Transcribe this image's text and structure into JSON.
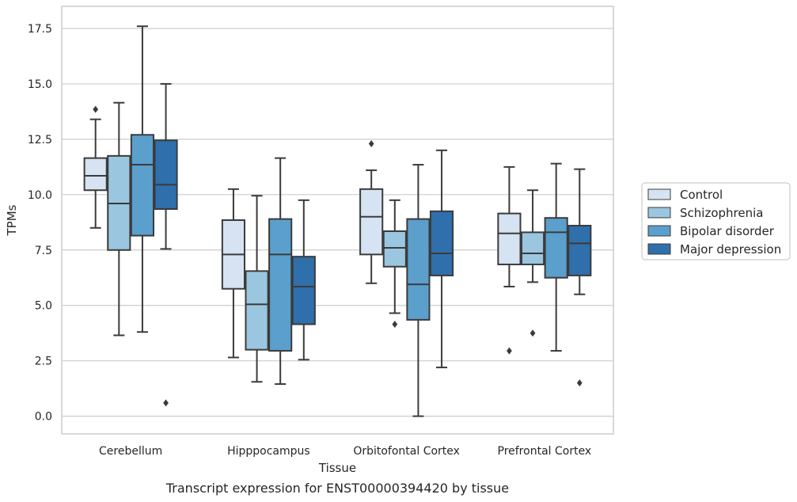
{
  "chart_data": {
    "type": "box",
    "caption": "Transcript expression for ENST00000394420 by tissue",
    "xlabel": "Tissue",
    "ylabel": "TPMs",
    "ylim": [
      -0.8,
      18.5
    ],
    "yticks": [
      "0.0",
      "2.5",
      "5.0",
      "7.5",
      "10.0",
      "12.5",
      "15.0",
      "17.5"
    ],
    "grid": true,
    "legend_position": "right",
    "categories": [
      "Cerebellum",
      "Hipppocampus",
      "Orbitofontal Cortex",
      "Prefrontal Cortex"
    ],
    "series": [
      {
        "name": "Control",
        "color": "#d5e3f2",
        "boxes": [
          {
            "whislo": 8.5,
            "q1": 10.2,
            "med": 10.85,
            "q3": 11.65,
            "whishi": 13.4,
            "fliers": [
              13.85
            ]
          },
          {
            "whislo": 2.65,
            "q1": 5.75,
            "med": 7.3,
            "q3": 8.85,
            "whishi": 10.25,
            "fliers": []
          },
          {
            "whislo": 6.0,
            "q1": 7.3,
            "med": 9.0,
            "q3": 10.25,
            "whishi": 11.1,
            "fliers": [
              12.3
            ]
          },
          {
            "whislo": 5.85,
            "q1": 6.85,
            "med": 8.25,
            "q3": 9.15,
            "whishi": 11.25,
            "fliers": [
              2.95
            ]
          }
        ]
      },
      {
        "name": "Schizophrenia",
        "color": "#9ac6e0",
        "boxes": [
          {
            "whislo": 3.65,
            "q1": 7.5,
            "med": 9.6,
            "q3": 11.75,
            "whishi": 14.15,
            "fliers": []
          },
          {
            "whislo": 1.55,
            "q1": 3.0,
            "med": 5.05,
            "q3": 6.55,
            "whishi": 9.95,
            "fliers": []
          },
          {
            "whislo": 4.65,
            "q1": 6.75,
            "med": 7.6,
            "q3": 8.35,
            "whishi": 9.75,
            "fliers": [
              4.15
            ]
          },
          {
            "whislo": 6.05,
            "q1": 6.85,
            "med": 7.35,
            "q3": 8.3,
            "whishi": 10.2,
            "fliers": [
              3.75
            ]
          }
        ]
      },
      {
        "name": "Bipolar disorder",
        "color": "#5b9fcc",
        "boxes": [
          {
            "whislo": 3.8,
            "q1": 8.15,
            "med": 11.35,
            "q3": 12.7,
            "whishi": 17.6,
            "fliers": []
          },
          {
            "whislo": 1.45,
            "q1": 2.95,
            "med": 7.3,
            "q3": 8.9,
            "whishi": 11.65,
            "fliers": []
          },
          {
            "whislo": 0.0,
            "q1": 4.35,
            "med": 5.95,
            "q3": 8.9,
            "whishi": 11.35,
            "fliers": []
          },
          {
            "whislo": 2.95,
            "q1": 6.25,
            "med": 8.3,
            "q3": 8.95,
            "whishi": 11.4,
            "fliers": []
          }
        ]
      },
      {
        "name": "Major depression",
        "color": "#2f6fab",
        "boxes": [
          {
            "whislo": 7.55,
            "q1": 9.35,
            "med": 10.45,
            "q3": 12.45,
            "whishi": 15.0,
            "fliers": [
              0.6
            ]
          },
          {
            "whislo": 2.55,
            "q1": 4.15,
            "med": 5.85,
            "q3": 7.2,
            "whishi": 9.75,
            "fliers": []
          },
          {
            "whislo": 2.2,
            "q1": 6.35,
            "med": 7.35,
            "q3": 9.25,
            "whishi": 12.0,
            "fliers": []
          },
          {
            "whislo": 5.5,
            "q1": 6.35,
            "med": 7.8,
            "q3": 8.6,
            "whishi": 11.15,
            "fliers": [
              1.5
            ]
          }
        ]
      }
    ]
  }
}
